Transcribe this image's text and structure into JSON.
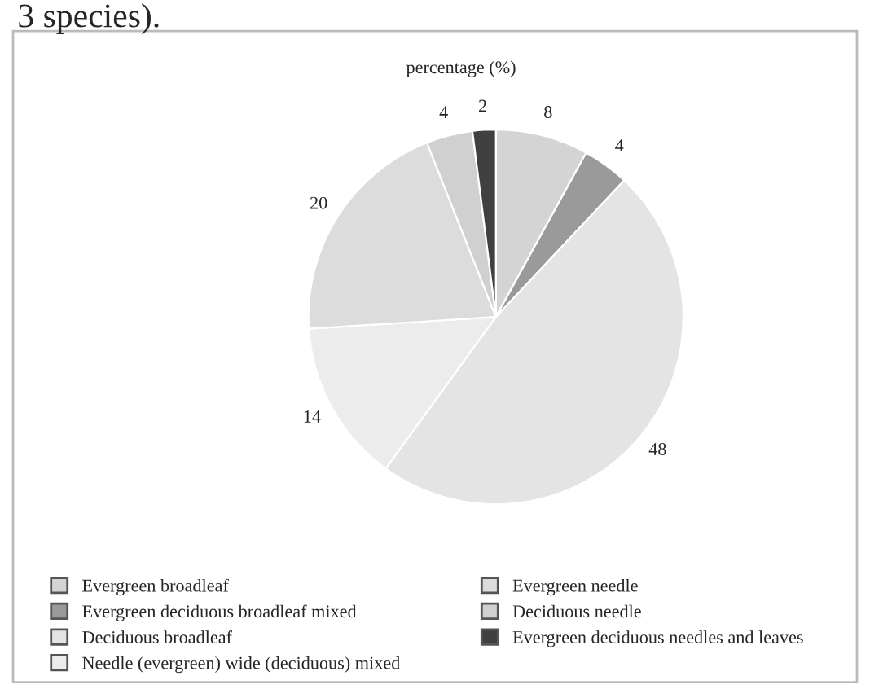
{
  "chart_data": {
    "type": "pie",
    "title": "percentage (%)",
    "annotations": [
      "3 species)."
    ],
    "categories": [
      "Evergreen broadleaf",
      "Evergreen deciduous broadleaf mixed",
      "Deciduous broadleaf",
      "Needle (evergreen) wide (deciduous) mixed",
      "Evergreen needle",
      "Deciduous needle",
      "Evergreen deciduous needles and leaves"
    ],
    "values": [
      8,
      4,
      48,
      14,
      20,
      4,
      2
    ],
    "colors": [
      "#d4d4d4",
      "#9a9a9a",
      "#e4e4e4",
      "#ececec",
      "#dcdcdc",
      "#d0d0d0",
      "#404040"
    ],
    "data_labels": true,
    "legend": "bottom"
  }
}
